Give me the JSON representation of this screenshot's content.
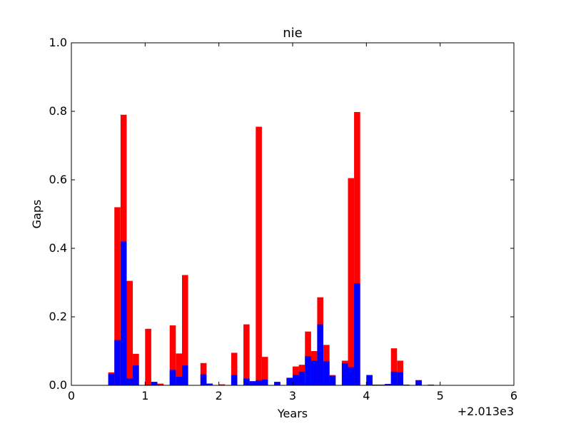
{
  "chart_data": {
    "type": "bar",
    "stacked": false,
    "title": "nie",
    "xlabel": "Years",
    "ylabel": "Gaps",
    "x_offset_label": "+2.013e3",
    "xlim": [
      0,
      6
    ],
    "ylim": [
      0,
      1.0
    ],
    "x_ticks": [
      0,
      1,
      2,
      3,
      4,
      5,
      6
    ],
    "x_tick_labels": [
      "0",
      "1",
      "2",
      "3",
      "4",
      "5",
      "6"
    ],
    "y_ticks": [
      0.0,
      0.2,
      0.4,
      0.6,
      0.8,
      1.0
    ],
    "y_tick_labels": [
      "0.0",
      "0.2",
      "0.4",
      "0.6",
      "0.8",
      "1.0"
    ],
    "bar_width": 0.083,
    "grid": false,
    "x": [
      0.5,
      0.583,
      0.667,
      0.75,
      0.833,
      1.0,
      1.083,
      1.167,
      1.333,
      1.417,
      1.5,
      1.75,
      1.833,
      2.0,
      2.167,
      2.333,
      2.417,
      2.5,
      2.583,
      2.75,
      2.917,
      3.0,
      3.083,
      3.167,
      3.25,
      3.333,
      3.417,
      3.5,
      3.667,
      3.75,
      3.833,
      4.0,
      4.083,
      4.167,
      4.25,
      4.333,
      4.417,
      4.5,
      4.667,
      4.833
    ],
    "series": [
      {
        "color": "#ff0000",
        "values": [
          0.038,
          0.52,
          0.79,
          0.305,
          0.092,
          0.165,
          0.01,
          0.005,
          0.175,
          0.093,
          0.322,
          0.065,
          0.005,
          0.003,
          0.095,
          0.178,
          0.012,
          0.755,
          0.083,
          0.01,
          0.022,
          0.055,
          0.06,
          0.157,
          0.1,
          0.257,
          0.118,
          0.03,
          0.072,
          0.605,
          0.798,
          0.03,
          0.002,
          0.002,
          0.004,
          0.108,
          0.072,
          0.002,
          0.015,
          0.002
        ]
      },
      {
        "color": "#0000ff",
        "values": [
          0.033,
          0.132,
          0.42,
          0.02,
          0.058,
          0.002,
          0.01,
          0.002,
          0.045,
          0.025,
          0.058,
          0.032,
          0.005,
          0.001,
          0.03,
          0.02,
          0.012,
          0.015,
          0.017,
          0.01,
          0.022,
          0.03,
          0.04,
          0.085,
          0.072,
          0.178,
          0.07,
          0.028,
          0.065,
          0.053,
          0.298,
          0.03,
          0.002,
          0.002,
          0.004,
          0.04,
          0.038,
          0.002,
          0.015,
          0.002
        ]
      }
    ]
  }
}
